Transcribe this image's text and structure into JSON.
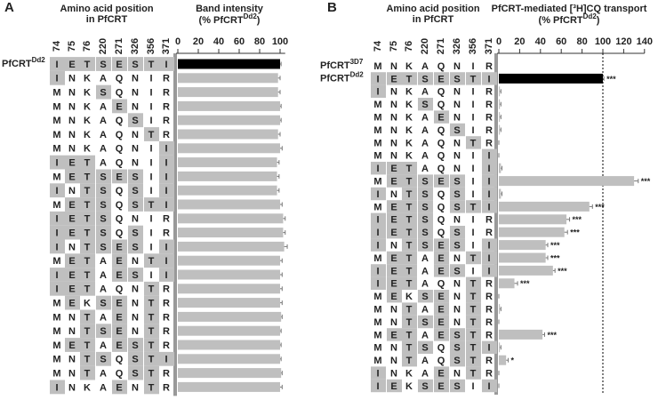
{
  "chart_data": [
    {
      "type": "bar",
      "panel": "A",
      "positions_title": [
        "Amino acid position",
        "in PfCRT"
      ],
      "value_title": "Band intensity",
      "value_title_2": {
        "text": "(% PfCRT",
        "sup": "Dd2",
        "tail": ")"
      },
      "positions": [
        "74",
        "75",
        "76",
        "220",
        "271",
        "326",
        "356",
        "371"
      ],
      "row_labels": [
        {
          "text": "PfCRT",
          "sup": "Dd2"
        },
        null,
        null,
        null,
        null,
        null,
        null,
        null,
        null,
        null,
        null,
        null,
        null,
        null,
        null,
        null,
        null,
        null,
        null,
        null,
        null,
        null,
        null,
        null
      ],
      "sequences": [
        [
          "I",
          "E",
          "T",
          "S",
          "E",
          "S",
          "T",
          "I"
        ],
        [
          "I",
          "N",
          "K",
          "A",
          "Q",
          "N",
          "I",
          "R"
        ],
        [
          "M",
          "N",
          "K",
          "S",
          "Q",
          "N",
          "I",
          "R"
        ],
        [
          "M",
          "N",
          "K",
          "A",
          "E",
          "N",
          "I",
          "R"
        ],
        [
          "M",
          "N",
          "K",
          "A",
          "Q",
          "S",
          "I",
          "R"
        ],
        [
          "M",
          "N",
          "K",
          "A",
          "Q",
          "N",
          "T",
          "R"
        ],
        [
          "M",
          "N",
          "K",
          "A",
          "Q",
          "N",
          "I",
          "I"
        ],
        [
          "I",
          "E",
          "T",
          "A",
          "Q",
          "N",
          "I",
          "I"
        ],
        [
          "M",
          "E",
          "T",
          "S",
          "E",
          "S",
          "I",
          "I"
        ],
        [
          "I",
          "N",
          "T",
          "S",
          "Q",
          "S",
          "I",
          "I"
        ],
        [
          "M",
          "E",
          "T",
          "S",
          "Q",
          "S",
          "T",
          "I"
        ],
        [
          "I",
          "E",
          "T",
          "S",
          "Q",
          "N",
          "I",
          "R"
        ],
        [
          "I",
          "E",
          "T",
          "S",
          "Q",
          "S",
          "I",
          "R"
        ],
        [
          "I",
          "N",
          "T",
          "S",
          "E",
          "S",
          "I",
          "I"
        ],
        [
          "M",
          "E",
          "T",
          "A",
          "E",
          "N",
          "T",
          "I"
        ],
        [
          "I",
          "E",
          "T",
          "A",
          "E",
          "S",
          "I",
          "I"
        ],
        [
          "I",
          "E",
          "T",
          "A",
          "Q",
          "N",
          "T",
          "R"
        ],
        [
          "M",
          "E",
          "K",
          "S",
          "E",
          "N",
          "T",
          "R"
        ],
        [
          "M",
          "N",
          "T",
          "A",
          "E",
          "N",
          "T",
          "R"
        ],
        [
          "M",
          "N",
          "T",
          "S",
          "E",
          "N",
          "T",
          "R"
        ],
        [
          "M",
          "E",
          "T",
          "A",
          "E",
          "S",
          "T",
          "R"
        ],
        [
          "M",
          "N",
          "T",
          "S",
          "Q",
          "S",
          "T",
          "I"
        ],
        [
          "M",
          "N",
          "T",
          "A",
          "Q",
          "S",
          "T",
          "R"
        ],
        [
          "I",
          "N",
          "K",
          "A",
          "E",
          "N",
          "T",
          "R"
        ]
      ],
      "values": [
        100,
        98,
        98,
        100,
        100,
        98,
        100,
        97,
        97,
        97,
        100,
        103,
        103,
        104,
        100,
        100,
        100,
        100,
        101,
        100,
        100,
        100,
        101,
        100
      ],
      "errors": [
        1,
        2,
        2,
        1,
        1,
        2,
        2,
        2,
        2,
        2,
        2,
        2,
        2,
        3,
        2,
        2,
        2,
        2,
        1,
        1,
        1,
        1,
        1,
        2
      ],
      "significance": [],
      "xlim": [
        0,
        105
      ],
      "xticks": [
        0,
        20,
        40,
        60,
        80,
        100
      ],
      "color": "#bfbfbf",
      "reference_color": "#000000",
      "reference_row": 0,
      "shade_color": "#bfbfbf",
      "reference_line": null
    },
    {
      "type": "bar",
      "panel": "B",
      "positions_title": [
        "Amino acid position",
        "in PfCRT"
      ],
      "value_title": "PfCRT-mediated [³H]CQ transport",
      "value_title_2": {
        "text": "(% PfCRT",
        "sup": "Dd2",
        "tail": ")"
      },
      "positions": [
        "74",
        "75",
        "76",
        "220",
        "271",
        "326",
        "356",
        "371"
      ],
      "row_labels": [
        {
          "text": "PfCRT",
          "sup": "3D7"
        },
        {
          "text": "PfCRT",
          "sup": "Dd2"
        },
        null,
        null,
        null,
        null,
        null,
        null,
        null,
        null,
        null,
        null,
        null,
        null,
        null,
        null,
        null,
        null,
        null,
        null,
        null,
        null,
        null,
        null,
        null,
        null
      ],
      "sequences": [
        [
          "M",
          "N",
          "K",
          "A",
          "Q",
          "N",
          "I",
          "R"
        ],
        [
          "I",
          "E",
          "T",
          "S",
          "E",
          "S",
          "T",
          "I"
        ],
        [
          "I",
          "N",
          "K",
          "A",
          "Q",
          "N",
          "I",
          "R"
        ],
        [
          "M",
          "N",
          "K",
          "S",
          "Q",
          "N",
          "I",
          "R"
        ],
        [
          "M",
          "N",
          "K",
          "A",
          "E",
          "N",
          "I",
          "R"
        ],
        [
          "M",
          "N",
          "K",
          "A",
          "Q",
          "S",
          "I",
          "R"
        ],
        [
          "M",
          "N",
          "K",
          "A",
          "Q",
          "N",
          "T",
          "R"
        ],
        [
          "M",
          "N",
          "K",
          "A",
          "Q",
          "N",
          "I",
          "I"
        ],
        [
          "I",
          "E",
          "T",
          "A",
          "Q",
          "N",
          "I",
          "I"
        ],
        [
          "M",
          "E",
          "T",
          "S",
          "E",
          "S",
          "I",
          "I"
        ],
        [
          "I",
          "N",
          "T",
          "S",
          "Q",
          "S",
          "I",
          "I"
        ],
        [
          "M",
          "E",
          "T",
          "S",
          "Q",
          "S",
          "T",
          "I"
        ],
        [
          "I",
          "E",
          "T",
          "S",
          "Q",
          "N",
          "I",
          "R"
        ],
        [
          "I",
          "E",
          "T",
          "S",
          "Q",
          "S",
          "I",
          "R"
        ],
        [
          "I",
          "N",
          "T",
          "S",
          "E",
          "S",
          "I",
          "I"
        ],
        [
          "M",
          "E",
          "T",
          "A",
          "E",
          "N",
          "T",
          "I"
        ],
        [
          "I",
          "E",
          "T",
          "A",
          "E",
          "S",
          "I",
          "I"
        ],
        [
          "I",
          "E",
          "T",
          "A",
          "Q",
          "N",
          "T",
          "R"
        ],
        [
          "M",
          "E",
          "K",
          "S",
          "E",
          "N",
          "T",
          "R"
        ],
        [
          "M",
          "N",
          "T",
          "A",
          "E",
          "N",
          "T",
          "R"
        ],
        [
          "M",
          "N",
          "T",
          "S",
          "E",
          "N",
          "T",
          "R"
        ],
        [
          "M",
          "E",
          "T",
          "A",
          "E",
          "S",
          "T",
          "R"
        ],
        [
          "M",
          "N",
          "T",
          "S",
          "Q",
          "S",
          "T",
          "I"
        ],
        [
          "M",
          "N",
          "T",
          "A",
          "Q",
          "S",
          "T",
          "R"
        ],
        [
          "I",
          "N",
          "K",
          "A",
          "E",
          "N",
          "T",
          "R"
        ],
        [
          "I",
          "E",
          "K",
          "S",
          "E",
          "S",
          "I",
          "I"
        ]
      ],
      "values": [
        null,
        100,
        1,
        1,
        1,
        1,
        0,
        0,
        2,
        130,
        2,
        87,
        65,
        63,
        45,
        45,
        52,
        15,
        0,
        1,
        0,
        42,
        1,
        7,
        0,
        0
      ],
      "errors": [
        null,
        1,
        1,
        1,
        1,
        1,
        0,
        0,
        1,
        4,
        1,
        3,
        3,
        3,
        2,
        2,
        2,
        3,
        0,
        1,
        0,
        2,
        1,
        2,
        0,
        0
      ],
      "significance": [
        null,
        "***",
        null,
        null,
        null,
        null,
        null,
        null,
        null,
        "***",
        null,
        "***",
        "***",
        "***",
        "***",
        "***",
        "***",
        "***",
        null,
        null,
        null,
        "***",
        null,
        "*",
        null,
        null
      ],
      "xlim": [
        0,
        140
      ],
      "xticks": [
        0,
        20,
        40,
        60,
        80,
        100,
        120,
        140
      ],
      "color": "#bfbfbf",
      "reference_color": "#000000",
      "reference_row": 1,
      "shade_color": "#bfbfbf",
      "reference_line": 100
    }
  ]
}
